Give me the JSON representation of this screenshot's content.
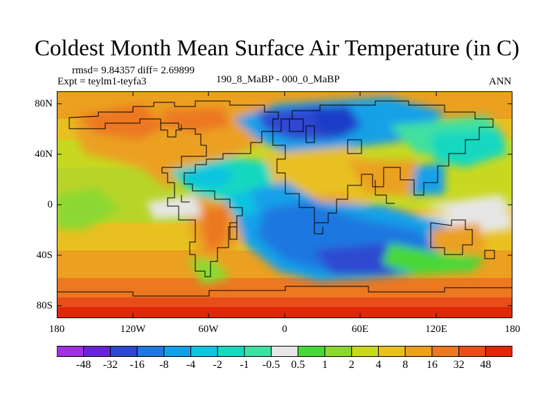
{
  "title": "Coldest Month Mean Surface Air Temperature (in C)",
  "stats": "rmsd= 9.84357 diff= 2.69899",
  "expt": "Expt = teylm1-teyfa3",
  "period": "190_8_MaBP - 000_0_MaBP",
  "season": "ANN",
  "lat_labels": [
    "80N",
    "40N",
    "0",
    "40S",
    "80S"
  ],
  "lon_labels": [
    "180",
    "120W",
    "60W",
    "0",
    "60E",
    "120E",
    "180"
  ],
  "colorbar": {
    "labels": [
      "-48",
      "-32",
      "-16",
      "-8",
      "-4",
      "-2",
      "-1",
      "-0.5",
      "0.5",
      "1",
      "2",
      "4",
      "8",
      "16",
      "32",
      "48"
    ],
    "colors": [
      "#a030e0",
      "#6a24d8",
      "#2e48d0",
      "#1f78e0",
      "#14a0e8",
      "#10c4e0",
      "#18d8c0",
      "#40e0a0",
      "#e6e6e6",
      "#48d838",
      "#8cd830",
      "#c8d820",
      "#e8c020",
      "#eba020",
      "#ec7820",
      "#e84e18",
      "#e02808"
    ]
  }
}
